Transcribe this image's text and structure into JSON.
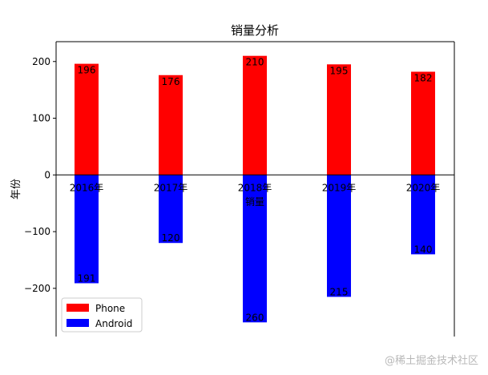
{
  "watermark": "@稀土掘金技术社区",
  "chart_data": {
    "type": "bar",
    "title": "销量分析",
    "xlabel": "销量",
    "ylabel": "年份",
    "categories": [
      "2016年",
      "2017年",
      "2018年",
      "2019年",
      "2020年"
    ],
    "series": [
      {
        "name": "Phone",
        "color": "#ff0000",
        "values": [
          196,
          176,
          210,
          195,
          182
        ],
        "labels": [
          "196",
          "176",
          "210",
          "195",
          "182"
        ]
      },
      {
        "name": "Android",
        "color": "#0000ff",
        "values": [
          -191,
          -120,
          -260,
          -215,
          -140
        ],
        "labels": [
          "191",
          "120",
          "260",
          "215",
          "140"
        ]
      }
    ],
    "ylim": [
      -285,
      235
    ],
    "yticks": [
      200,
      100,
      0,
      -100,
      -200
    ],
    "ytick_labels": [
      "200",
      "100",
      "0",
      "−100",
      "−200"
    ],
    "legend_position": "lower-left",
    "grid": false
  }
}
